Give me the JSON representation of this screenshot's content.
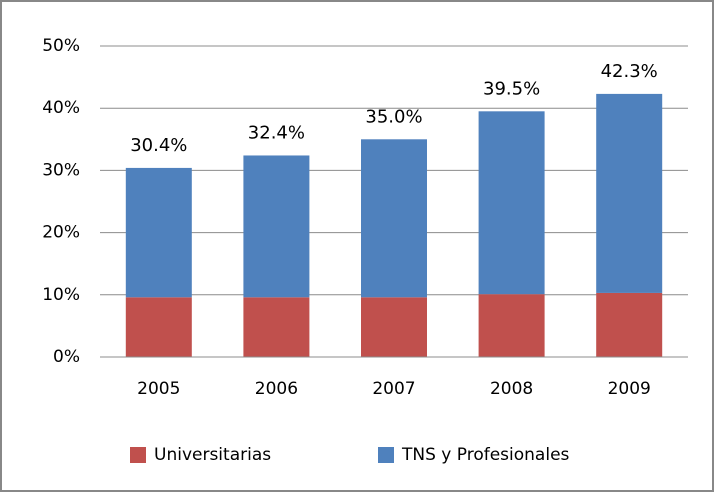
{
  "chart_data": {
    "type": "stacked_bar",
    "categories": [
      "2005",
      "2006",
      "2007",
      "2008",
      "2009"
    ],
    "series": [
      {
        "name": "Universitarias",
        "color": "#c0504d",
        "values": [
          9.6,
          9.6,
          9.6,
          10.1,
          10.3
        ]
      },
      {
        "name": "TNS y Profesionales",
        "color": "#4f81bd",
        "values": [
          20.8,
          22.8,
          25.4,
          29.4,
          32.0
        ]
      }
    ],
    "totals": [
      30.4,
      32.4,
      35.0,
      39.5,
      42.3
    ],
    "value_labels": [
      "30.4%",
      "32.4%",
      "35.0%",
      "39.5%",
      "42.3%"
    ],
    "ylim": [
      0,
      50
    ],
    "yticks": [
      {
        "value": 0,
        "label": "0%"
      },
      {
        "value": 10,
        "label": "10%"
      },
      {
        "value": 20,
        "label": "20%"
      },
      {
        "value": 30,
        "label": "30%"
      },
      {
        "value": 40,
        "label": "40%"
      },
      {
        "value": 50,
        "label": "50%"
      }
    ],
    "grid": true,
    "legend": "bottom"
  }
}
